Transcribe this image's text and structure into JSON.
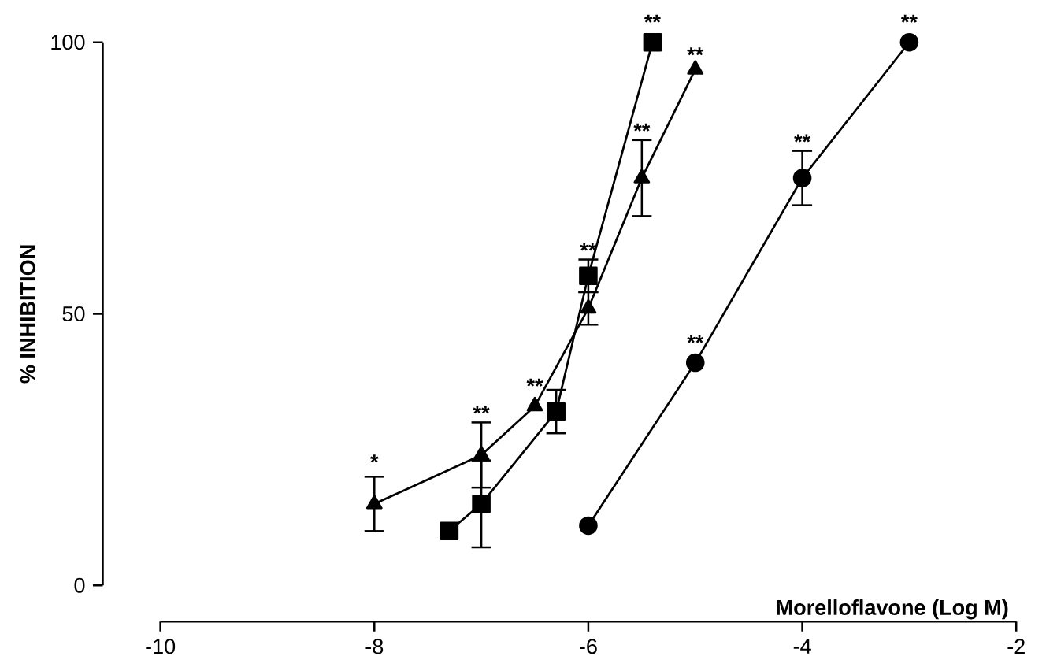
{
  "chart_data": {
    "type": "line",
    "xlabel": "Morelloflavone (Log M)",
    "ylabel": "% INHIBITION",
    "xlim": [
      -10,
      -2
    ],
    "xticks": [
      -10,
      -8,
      -6,
      -4,
      -2
    ],
    "ylim": [
      0,
      100
    ],
    "yticks": [
      0,
      50,
      100
    ],
    "grid": false,
    "series": [
      {
        "color": "#000000",
        "marker": "triangle",
        "x": [
          -8,
          -7,
          -6.5,
          -6,
          -5.5,
          -5
        ],
        "values": [
          15,
          24,
          33,
          51,
          75,
          95
        ],
        "errors": [
          5,
          6,
          null,
          3,
          7,
          null
        ]
      },
      {
        "color": "#000000",
        "marker": "square",
        "x": [
          -7.3,
          -7,
          -6.3,
          -6,
          -5.4
        ],
        "values": [
          10,
          15,
          32,
          57,
          100
        ],
        "errors": [
          null,
          8,
          4,
          3,
          null
        ]
      },
      {
        "color": "#000000",
        "marker": "circle",
        "x": [
          -6,
          -5,
          -4,
          -3
        ],
        "values": [
          11,
          41,
          75,
          100
        ],
        "errors": [
          null,
          null,
          5,
          null
        ]
      }
    ],
    "annotations": [
      {
        "text": "*",
        "x": -8,
        "y": 21
      },
      {
        "text": "**",
        "x": -7,
        "y": 30
      },
      {
        "text": "**",
        "x": -6.5,
        "y": 35
      },
      {
        "text": "**",
        "x": -6,
        "y": 60
      },
      {
        "text": "**",
        "x": -5.5,
        "y": 82
      },
      {
        "text": "**",
        "x": -5,
        "y": 96
      },
      {
        "text": "**",
        "x": -5.4,
        "y": 102
      },
      {
        "text": "**",
        "x": -5,
        "y": 43
      },
      {
        "text": "**",
        "x": -4,
        "y": 80
      },
      {
        "text": "**",
        "x": -3,
        "y": 102
      }
    ]
  }
}
